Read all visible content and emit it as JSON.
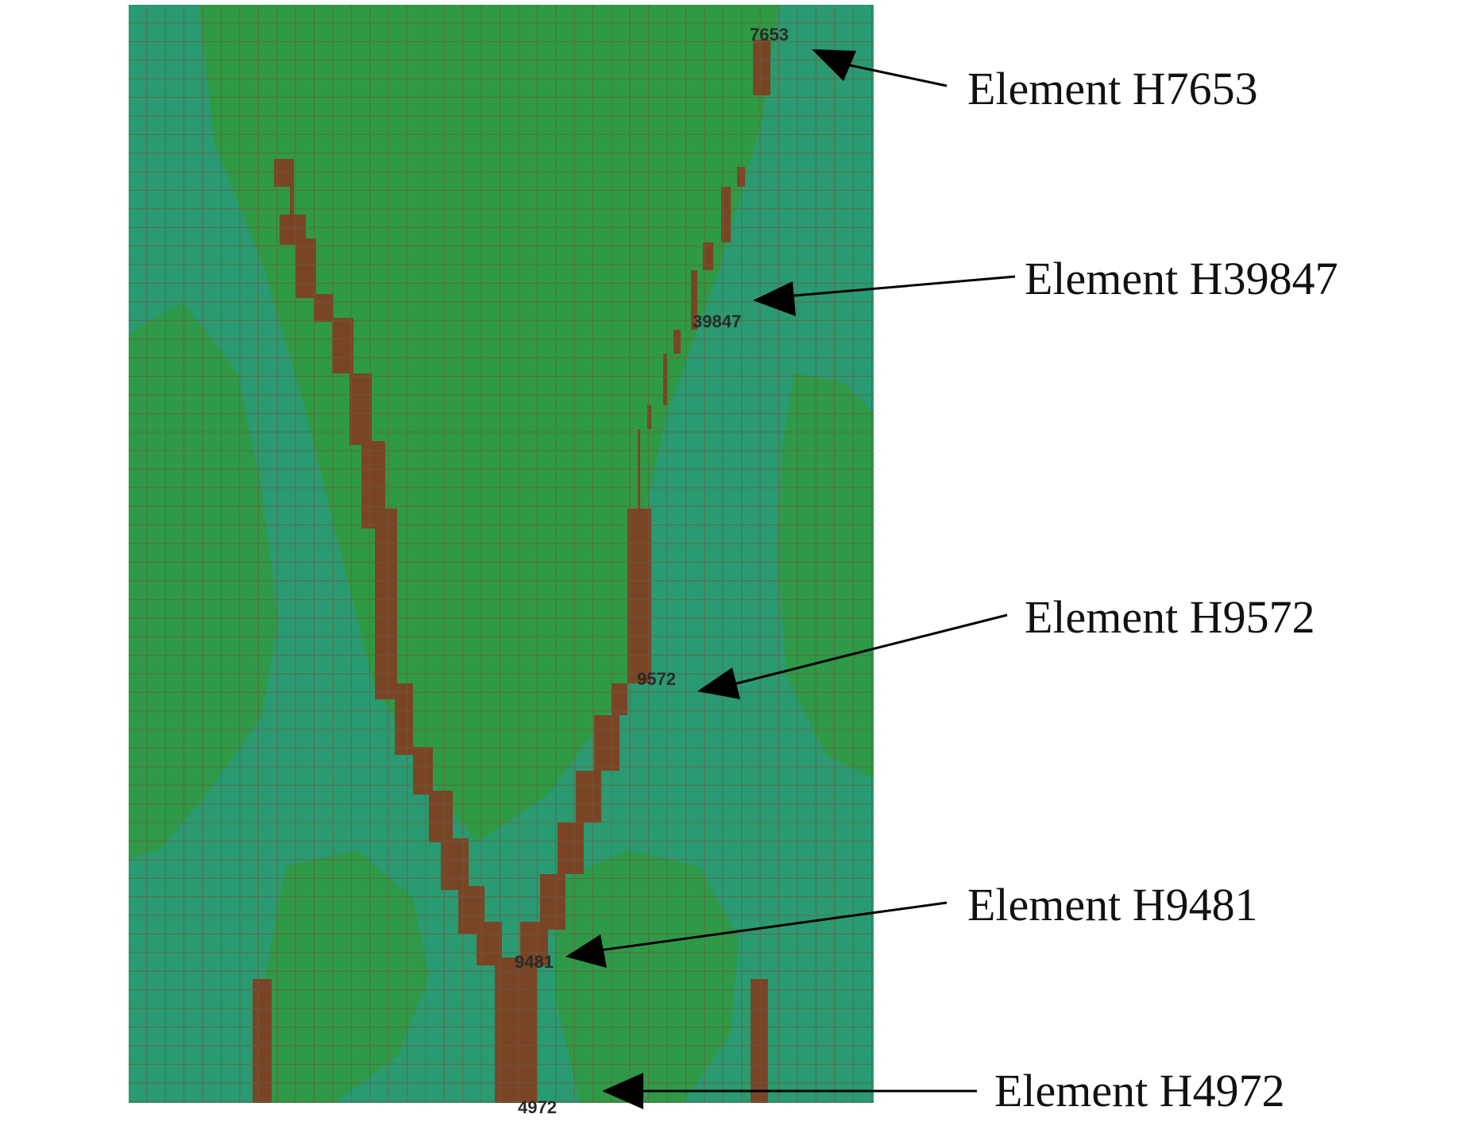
{
  "diagram": {
    "colors": {
      "background": "#ffffff",
      "mesh_zone_outer": "#2a9a72",
      "mesh_zone_inner": "#2f9a44",
      "crack_path": "#7a4526",
      "mesh_lines": "#6a5a3c",
      "arrow": "#000000"
    },
    "callouts": [
      {
        "id": "h7653",
        "label": "Element H7653",
        "element_number": "7653"
      },
      {
        "id": "h39847",
        "label": "Element H39847",
        "element_number": "39847"
      },
      {
        "id": "h9572",
        "label": "Element H9572",
        "element_number": "9572"
      },
      {
        "id": "h9481",
        "label": "Element H9481",
        "element_number": "9481"
      },
      {
        "id": "h4972",
        "label": "Element H4972",
        "element_number": "4972"
      }
    ]
  }
}
